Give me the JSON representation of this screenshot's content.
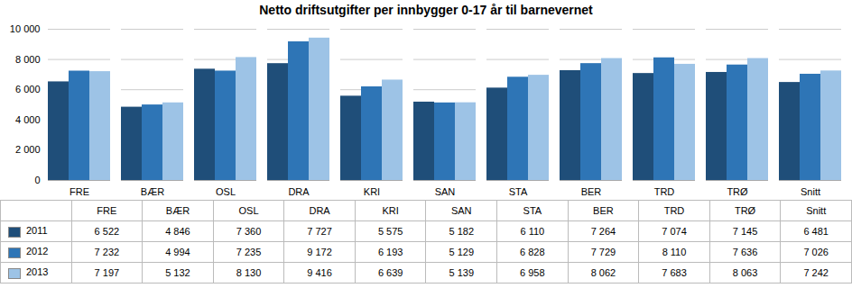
{
  "chart_data": {
    "type": "bar",
    "title": "Netto driftsutgifter per innbygger 0-17 år til barnevernet",
    "categories": [
      "FRE",
      "BÆR",
      "OSL",
      "DRA",
      "KRI",
      "SAN",
      "STA",
      "BER",
      "TRD",
      "TRØ",
      "Snitt"
    ],
    "series": [
      {
        "name": "2011",
        "color": "#1F4E79",
        "values": [
          6522,
          4846,
          7360,
          7727,
          5575,
          5182,
          6110,
          7264,
          7074,
          7145,
          6481
        ],
        "value_labels": [
          "6 522",
          "4 846",
          "7 360",
          "7 727",
          "5 575",
          "5 182",
          "6 110",
          "7 264",
          "7 074",
          "7 145",
          "6 481"
        ]
      },
      {
        "name": "2012",
        "color": "#2E75B6",
        "values": [
          7232,
          4994,
          7235,
          9172,
          6193,
          5129,
          6828,
          7729,
          8110,
          7636,
          7026
        ],
        "value_labels": [
          "7 232",
          "4 994",
          "7 235",
          "9 172",
          "6 193",
          "5 129",
          "6 828",
          "7 729",
          "8 110",
          "7 636",
          "7 026"
        ]
      },
      {
        "name": "2013",
        "color": "#9DC3E6",
        "values": [
          7197,
          5132,
          8130,
          9416,
          6639,
          5139,
          6958,
          8062,
          7683,
          8063,
          7242
        ],
        "value_labels": [
          "7 197",
          "5 132",
          "8 130",
          "9 416",
          "6 639",
          "5 139",
          "6 958",
          "8 062",
          "7 683",
          "8 063",
          "7 242"
        ]
      }
    ],
    "ylim": [
      0,
      10000
    ],
    "yticks": [
      0,
      {
        "value": 2000,
        "label": "2 000"
      },
      {
        "value": 4000,
        "label": "4 000"
      },
      {
        "value": 6000,
        "label": "6 000"
      },
      {
        "value": 8000,
        "label": "8 000"
      },
      {
        "value": 10000,
        "label": "10 000"
      }
    ],
    "grid": true,
    "legend": "bottom",
    "data_labels": true
  }
}
